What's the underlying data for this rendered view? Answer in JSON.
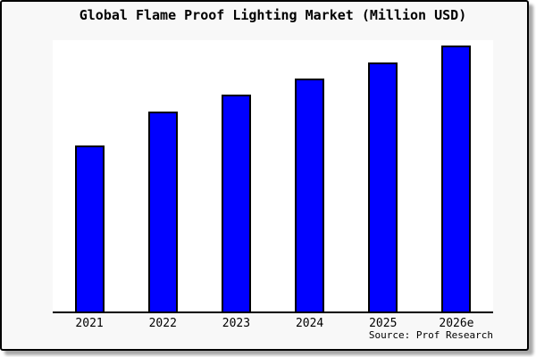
{
  "page": {
    "background_color": "#ffffff",
    "card_background_color": "#f8f8f8",
    "frame_border_color": "#000000"
  },
  "chart_data": {
    "type": "bar",
    "title": "Global Flame Proof Lighting Market (Million USD)",
    "categories": [
      "2021",
      "2022",
      "2023",
      "2024",
      "2025",
      "2026e"
    ],
    "values": [
      62.7,
      75.2,
      81.7,
      87.7,
      93.7,
      100
    ],
    "values_note": "no y-axis, ticks, gridlines or data labels are shown; values estimated from bar heights, normalized so 2026e = 100",
    "xlabel": "",
    "ylabel": "",
    "ylim": [
      0,
      101.8
    ],
    "grid": false,
    "legend": "none",
    "bar_color": "#0000ff",
    "bar_edge_color": "#000000",
    "source": "Source: Prof Research"
  }
}
